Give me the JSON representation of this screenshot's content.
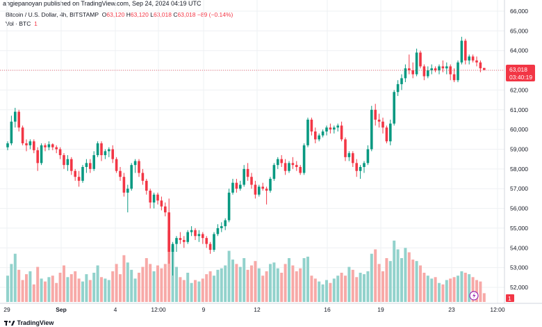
{
  "header": {
    "caption": "angiepanoyan published on TradingView.com, Sep 24, 2024 04:19 UTC",
    "symbol": "Bitcoin / U.S. Dollar, 4h, BITSTAMP",
    "o_label": "O",
    "o_value": "63,120",
    "h_label": "H",
    "h_value": "63,120",
    "l_label": "L",
    "l_value": "63,018",
    "c_label": "C",
    "c_value": "63,018",
    "change": "−89 (−0.14%)",
    "vol_label": "Vol · BTC",
    "vol_value": "1"
  },
  "price_badge": {
    "price": "63,018",
    "countdown": "03:40:19",
    "color": "#f23645"
  },
  "volume_badge": {
    "value": "1",
    "color": "#f23645"
  },
  "logo": {
    "text": "TradingView",
    "icon": "tradingview-logo-icon"
  },
  "colors": {
    "up": "#089981",
    "down": "#f23645",
    "vol_up": "#92d2cc",
    "vol_down": "#f7a9a7",
    "grid": "#eef0f3"
  },
  "chart_data": {
    "type": "candlestick",
    "title": "",
    "y_axis": {
      "min": 51500,
      "max": 66000,
      "ticks": [
        "66,000",
        "65,000",
        "64,000",
        "63,000",
        "62,000",
        "61,000",
        "60,000",
        "59,000",
        "58,000",
        "57,000",
        "56,000",
        "55,000",
        "54,000",
        "53,000",
        "52,000"
      ]
    },
    "x_axis": {
      "labels": [
        "29",
        "Sep",
        "4",
        "12:00",
        "9",
        "12",
        "16",
        "19",
        "23",
        "12:00"
      ]
    },
    "last_price": 63018,
    "candles": [
      [
        59100,
        59400,
        58950,
        59300
      ],
      [
        59300,
        60700,
        59200,
        60400
      ],
      [
        60400,
        61100,
        60100,
        60900
      ],
      [
        60900,
        61000,
        59900,
        60100
      ],
      [
        60100,
        60200,
        59200,
        59300
      ],
      [
        59300,
        59500,
        58900,
        59200
      ],
      [
        59200,
        59500,
        59000,
        59400
      ],
      [
        59400,
        59500,
        58800,
        58950
      ],
      [
        58950,
        59100,
        57900,
        58300
      ],
      [
        58300,
        59300,
        58200,
        59200
      ],
      [
        59200,
        59300,
        58900,
        59100
      ],
      [
        59100,
        59400,
        58950,
        59250
      ],
      [
        59250,
        59300,
        58950,
        59100
      ],
      [
        59100,
        59200,
        58800,
        59000
      ],
      [
        59000,
        59100,
        58500,
        58700
      ],
      [
        58700,
        58800,
        58000,
        58200
      ],
      [
        58200,
        58700,
        57900,
        58500
      ],
      [
        58500,
        58600,
        57700,
        57900
      ],
      [
        57900,
        58000,
        57400,
        57600
      ],
      [
        57600,
        57900,
        57100,
        57400
      ],
      [
        57400,
        58200,
        57300,
        58100
      ],
      [
        58100,
        58500,
        57800,
        58300
      ],
      [
        58300,
        58500,
        57800,
        58000
      ],
      [
        58000,
        58900,
        57900,
        58700
      ],
      [
        58700,
        59400,
        58600,
        59300
      ],
      [
        59300,
        59400,
        58400,
        58700
      ],
      [
        58700,
        59000,
        58500,
        58900
      ],
      [
        58900,
        59100,
        58600,
        59000
      ],
      [
        59000,
        59200,
        58300,
        58500
      ],
      [
        58500,
        58600,
        57800,
        57900
      ],
      [
        57900,
        58100,
        57400,
        57600
      ],
      [
        57600,
        57800,
        56600,
        56800
      ],
      [
        56800,
        57200,
        55800,
        57000
      ],
      [
        57000,
        58300,
        56900,
        58200
      ],
      [
        58200,
        58500,
        57800,
        58400
      ],
      [
        58400,
        58500,
        57600,
        57800
      ],
      [
        57800,
        58000,
        57200,
        57400
      ],
      [
        57400,
        57500,
        56700,
        56900
      ],
      [
        56900,
        57000,
        56000,
        56300
      ],
      [
        56300,
        56800,
        56000,
        56700
      ],
      [
        56700,
        56800,
        56200,
        56400
      ],
      [
        56400,
        56600,
        55900,
        56100
      ],
      [
        56100,
        56300,
        55600,
        55800
      ],
      [
        55800,
        56500,
        53200,
        53800
      ],
      [
        53800,
        54300,
        52600,
        54200
      ],
      [
        54200,
        54600,
        53800,
        54500
      ],
      [
        54500,
        54800,
        54200,
        54400
      ],
      [
        54400,
        54600,
        54000,
        54300
      ],
      [
        54300,
        54900,
        54200,
        54800
      ],
      [
        54800,
        55100,
        54600,
        54900
      ],
      [
        54900,
        55000,
        54400,
        54600
      ],
      [
        54600,
        54900,
        54300,
        54700
      ],
      [
        54700,
        54800,
        54200,
        54500
      ],
      [
        54500,
        54600,
        54000,
        54200
      ],
      [
        54200,
        54300,
        53700,
        53900
      ],
      [
        53900,
        54800,
        53800,
        54700
      ],
      [
        54700,
        55200,
        54600,
        55000
      ],
      [
        55000,
        55300,
        54800,
        55100
      ],
      [
        55100,
        55500,
        54900,
        55400
      ],
      [
        55400,
        57000,
        55300,
        56800
      ],
      [
        56800,
        57500,
        56700,
        57300
      ],
      [
        57300,
        57500,
        56800,
        57000
      ],
      [
        57000,
        57400,
        56900,
        57200
      ],
      [
        57200,
        58200,
        57100,
        58000
      ],
      [
        58000,
        58300,
        57400,
        57600
      ],
      [
        57600,
        57800,
        57000,
        57200
      ],
      [
        57200,
        57400,
        56500,
        56700
      ],
      [
        56700,
        57200,
        56600,
        57100
      ],
      [
        57100,
        57300,
        56900,
        57000
      ],
      [
        57000,
        57100,
        56200,
        56900
      ],
      [
        56900,
        57600,
        56800,
        57500
      ],
      [
        57500,
        58300,
        57400,
        58200
      ],
      [
        58200,
        58600,
        58000,
        58500
      ],
      [
        58500,
        58700,
        58100,
        58300
      ],
      [
        58300,
        58500,
        57700,
        57900
      ],
      [
        57900,
        58400,
        57800,
        58300
      ],
      [
        58300,
        58600,
        58000,
        58200
      ],
      [
        58200,
        58400,
        57900,
        58100
      ],
      [
        58100,
        58200,
        57700,
        57800
      ],
      [
        57800,
        59300,
        57700,
        59200
      ],
      [
        59200,
        60600,
        59100,
        60500
      ],
      [
        60500,
        60600,
        59700,
        59900
      ],
      [
        59900,
        60100,
        59300,
        59500
      ],
      [
        59500,
        59800,
        59400,
        59700
      ],
      [
        59700,
        60000,
        59600,
        59900
      ],
      [
        59900,
        60200,
        59700,
        60100
      ],
      [
        60100,
        60300,
        59800,
        60000
      ],
      [
        60000,
        60200,
        59800,
        60100
      ],
      [
        60100,
        60300,
        59900,
        60200
      ],
      [
        60200,
        60400,
        59400,
        59500
      ],
      [
        59500,
        59600,
        58400,
        58600
      ],
      [
        58600,
        58900,
        58400,
        58800
      ],
      [
        58800,
        58900,
        58100,
        58300
      ],
      [
        58300,
        58500,
        57600,
        57900
      ],
      [
        57900,
        58200,
        57500,
        58100
      ],
      [
        58100,
        58400,
        57800,
        58300
      ],
      [
        58300,
        59200,
        58200,
        59000
      ],
      [
        59000,
        61200,
        58900,
        61000
      ],
      [
        61000,
        61300,
        60200,
        60500
      ],
      [
        60500,
        60800,
        60100,
        60400
      ],
      [
        60400,
        60600,
        59800,
        60100
      ],
      [
        60100,
        60200,
        59300,
        59400
      ],
      [
        59400,
        60500,
        59200,
        60300
      ],
      [
        60300,
        62000,
        60200,
        61900
      ],
      [
        61900,
        62500,
        61700,
        62300
      ],
      [
        62300,
        62800,
        62000,
        62600
      ],
      [
        62600,
        63300,
        62400,
        63100
      ],
      [
        63100,
        63800,
        62800,
        63000
      ],
      [
        63000,
        63400,
        62600,
        62800
      ],
      [
        62800,
        64100,
        62700,
        63900
      ],
      [
        63900,
        64000,
        63100,
        63200
      ],
      [
        63200,
        63300,
        62500,
        62700
      ],
      [
        62700,
        63200,
        62600,
        63000
      ],
      [
        63000,
        63300,
        62800,
        63100
      ],
      [
        63100,
        63200,
        62900,
        63000
      ],
      [
        63000,
        63300,
        62800,
        63200
      ],
      [
        63200,
        63500,
        62900,
        63100
      ],
      [
        63100,
        63400,
        62800,
        63200
      ],
      [
        63200,
        63300,
        62500,
        62800
      ],
      [
        62800,
        63100,
        62400,
        62500
      ],
      [
        62500,
        63500,
        62400,
        63400
      ],
      [
        63400,
        64700,
        63300,
        64500
      ],
      [
        64500,
        64600,
        63300,
        63500
      ],
      [
        63500,
        63800,
        63300,
        63700
      ],
      [
        63700,
        63800,
        63400,
        63500
      ],
      [
        63500,
        63700,
        63200,
        63400
      ],
      [
        63400,
        63500,
        62900,
        63100
      ],
      [
        63120,
        63120,
        63018,
        63018
      ]
    ],
    "volumes": [
      180,
      260,
      330,
      220,
      150,
      190,
      210,
      120,
      240,
      160,
      140,
      170,
      180,
      130,
      200,
      250,
      170,
      190,
      210,
      160,
      140,
      190,
      150,
      200,
      250,
      170,
      160,
      150,
      210,
      260,
      190,
      320,
      270,
      220,
      160,
      200,
      240,
      300,
      260,
      210,
      250,
      230,
      260,
      490,
      380,
      240,
      170,
      150,
      200,
      130,
      150,
      140,
      160,
      190,
      210,
      180,
      220,
      230,
      250,
      350,
      290,
      260,
      240,
      300,
      220,
      250,
      280,
      230,
      180,
      210,
      260,
      270,
      230,
      200,
      260,
      300,
      250,
      210,
      230,
      300,
      310,
      180,
      160,
      140,
      120,
      150,
      130,
      160,
      180,
      200,
      180,
      240,
      220,
      170,
      200,
      190,
      210,
      330,
      360,
      260,
      210,
      300,
      280,
      420,
      360,
      300,
      370,
      340,
      290,
      280,
      250,
      200,
      180,
      160,
      170,
      130,
      120,
      150,
      160,
      170,
      180,
      210,
      200,
      190,
      170,
      150,
      140,
      60
    ]
  }
}
